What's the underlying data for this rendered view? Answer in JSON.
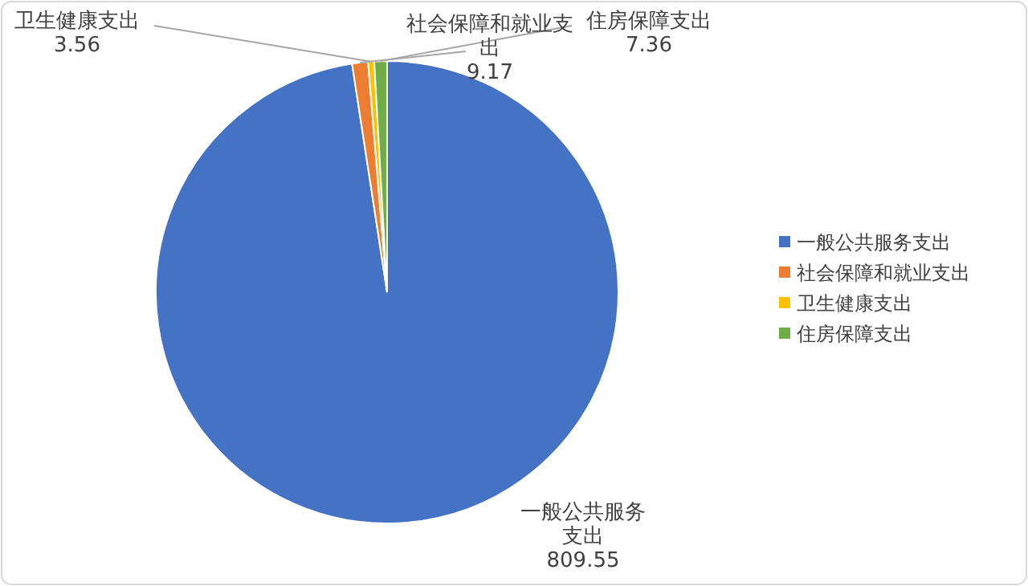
{
  "chart_data": {
    "type": "pie",
    "categories": [
      "一般公共服务支出",
      "社会保障和就业支出",
      "卫生健康支出",
      "住房保障支出"
    ],
    "values": [
      809.55,
      9.17,
      3.56,
      7.36
    ],
    "colors": [
      "#4472c4",
      "#ed7d31",
      "#ffc000",
      "#70ad47"
    ],
    "data_labels": true,
    "legend": "right"
  }
}
